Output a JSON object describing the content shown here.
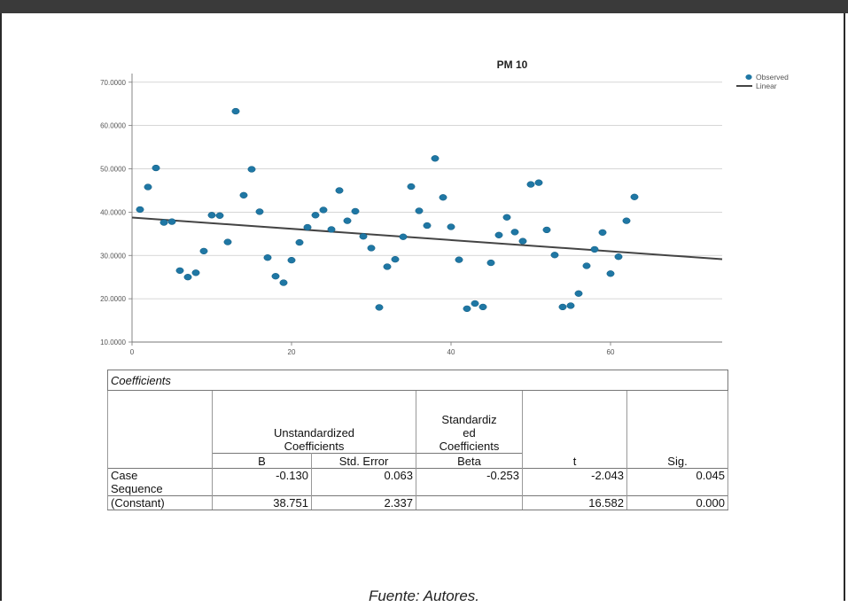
{
  "chart_data": {
    "type": "scatter",
    "title": "PM 10",
    "legend": {
      "placement": "top-right",
      "entries": [
        {
          "label": "Observed",
          "kind": "marker",
          "color": "#1f77a4"
        },
        {
          "label": "Linear",
          "kind": "line",
          "color": "#444444"
        }
      ]
    },
    "x_ticks": [
      "0",
      "20",
      "40",
      "60"
    ],
    "y_ticks": [
      "10.0000",
      "20.0000",
      "30.0000",
      "40.0000",
      "50.0000",
      "60.0000",
      "70.0000"
    ],
    "xlim": [
      0,
      74
    ],
    "ylim": [
      10,
      72
    ],
    "grid": "horizontal",
    "series": [
      {
        "label": "Observed",
        "type": "scatter",
        "color": "#1f77a4",
        "points": [
          [
            1,
            40.6
          ],
          [
            2,
            45.8
          ],
          [
            3,
            50.2
          ],
          [
            4,
            37.6
          ],
          [
            5,
            37.8
          ],
          [
            6,
            26.5
          ],
          [
            7,
            25.0
          ],
          [
            8,
            26.0
          ],
          [
            9,
            31.0
          ],
          [
            10,
            39.3
          ],
          [
            11,
            39.2
          ],
          [
            12,
            33.1
          ],
          [
            13,
            63.3
          ],
          [
            14,
            43.9
          ],
          [
            15,
            49.9
          ],
          [
            16,
            40.1
          ],
          [
            17,
            29.5
          ],
          [
            18,
            25.2
          ],
          [
            19,
            23.7
          ],
          [
            20,
            28.9
          ],
          [
            21,
            33.0
          ],
          [
            22,
            36.5
          ],
          [
            23,
            39.3
          ],
          [
            24,
            40.5
          ],
          [
            25,
            36.0
          ],
          [
            26,
            45.0
          ],
          [
            27,
            38.0
          ],
          [
            28,
            40.2
          ],
          [
            29,
            34.4
          ],
          [
            30,
            31.7
          ],
          [
            31,
            18.0
          ],
          [
            32,
            27.4
          ],
          [
            33,
            29.1
          ],
          [
            34,
            34.3
          ],
          [
            35,
            45.9
          ],
          [
            36,
            40.3
          ],
          [
            37,
            36.9
          ],
          [
            38,
            52.4
          ],
          [
            39,
            43.4
          ],
          [
            40,
            36.6
          ],
          [
            41,
            29.0
          ],
          [
            42,
            17.7
          ],
          [
            43,
            18.9
          ],
          [
            44,
            18.1
          ],
          [
            45,
            28.3
          ],
          [
            46,
            34.7
          ],
          [
            47,
            38.8
          ],
          [
            48,
            35.4
          ],
          [
            49,
            33.3
          ],
          [
            50,
            46.4
          ],
          [
            51,
            46.8
          ],
          [
            52,
            35.9
          ],
          [
            53,
            30.1
          ],
          [
            54,
            18.1
          ],
          [
            55,
            18.4
          ],
          [
            56,
            21.2
          ],
          [
            57,
            27.6
          ],
          [
            58,
            31.4
          ],
          [
            59,
            35.3
          ],
          [
            60,
            25.8
          ],
          [
            61,
            29.7
          ],
          [
            62,
            38.0
          ],
          [
            63,
            43.5
          ]
        ]
      },
      {
        "label": "Linear",
        "type": "line",
        "color": "#444444",
        "points": [
          [
            0,
            38.751
          ],
          [
            74,
            29.131
          ]
        ]
      }
    ]
  },
  "table": {
    "caption": "Coefficients",
    "header_group_unstd": "Unstandardized Coefficients",
    "header_group_std": "Standardized Coefficients",
    "header_unstd_line1": "Unstandardized",
    "header_unstd_line2": "Coefficients",
    "header_std_line1": "Standardiz",
    "header_std_line2": "ed",
    "header_std_line3": "Coefficients",
    "col_b": "B",
    "col_se": "Std. Error",
    "col_beta": "Beta",
    "col_t": "t",
    "col_sig": "Sig.",
    "rows": [
      {
        "label": "Case Sequence",
        "label_line1": "Case",
        "label_line2": "Sequence",
        "b": "-0.130",
        "se": "0.063",
        "beta": "-0.253",
        "t": "-2.043",
        "sig": "0.045"
      },
      {
        "label": "(Constant)",
        "b": "38.751",
        "se": "2.337",
        "beta": "",
        "t": "16.582",
        "sig": "0.000"
      }
    ]
  },
  "caption": "Fuente: Autores."
}
